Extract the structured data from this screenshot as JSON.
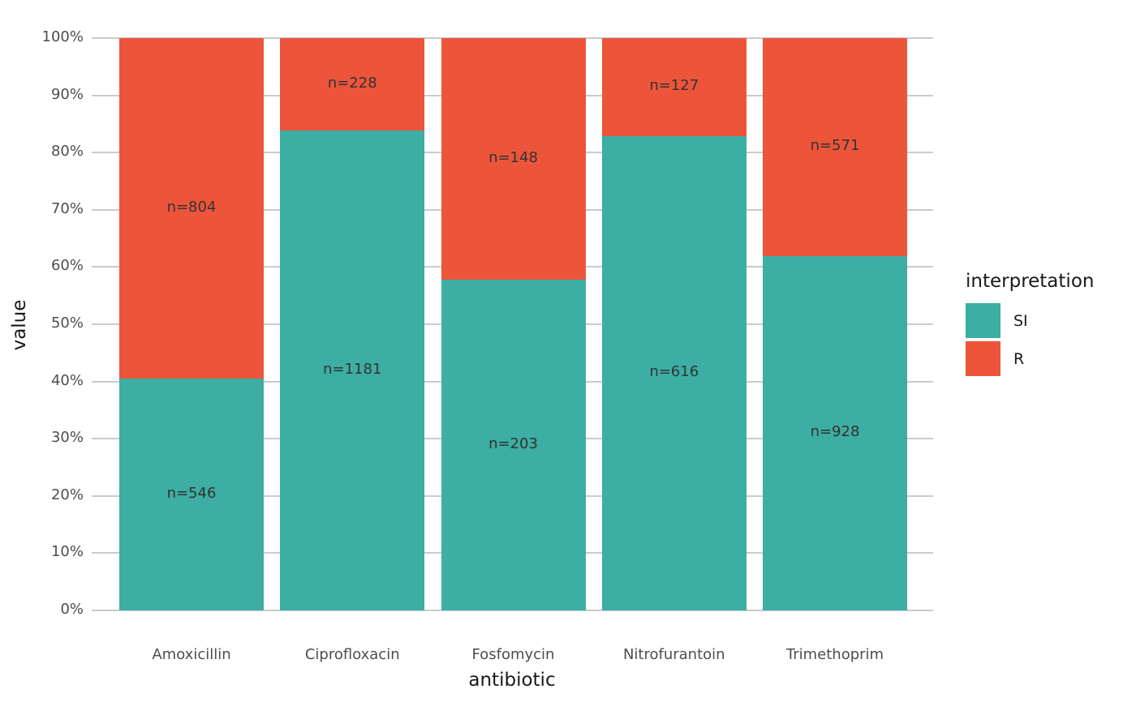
{
  "chart_data": {
    "type": "bar",
    "stacked": true,
    "orientation": "vertical",
    "title": "",
    "xlabel": "antibiotic",
    "ylabel": "value",
    "categories": [
      "Amoxicillin",
      "Ciprofloxacin",
      "Fosfomycin",
      "Nitrofurantoin",
      "Trimethoprim"
    ],
    "series": [
      {
        "name": "SI",
        "color": "#3CAEA3",
        "values": [
          546,
          1181,
          203,
          616,
          928
        ],
        "bar_labels": [
          "n=546",
          "n=1181",
          "n=203",
          "n=616",
          "n=928"
        ]
      },
      {
        "name": "R",
        "color": "#ED553B",
        "values": [
          804,
          228,
          148,
          127,
          571
        ],
        "bar_labels": [
          "n=804",
          "n=228",
          "n=148",
          "n=127",
          "n=571"
        ]
      }
    ],
    "y_axis": {
      "ticks": [
        "0%",
        "10%",
        "20%",
        "30%",
        "40%",
        "50%",
        "60%",
        "70%",
        "80%",
        "90%",
        "100%"
      ],
      "min": 0,
      "max": 100,
      "unit": "percent_of_category_total"
    },
    "legend": {
      "title": "interpretation",
      "position": "right",
      "entries": [
        "SI",
        "R"
      ]
    },
    "grid": {
      "horizontal": true,
      "vertical": false,
      "color": "#CBCBCB"
    }
  },
  "styles": {
    "background": "#FFFFFF",
    "tick_label_color": "#4D4D4D",
    "bar_label_color": "#333333",
    "axis_title_color": "#1A1A1A"
  }
}
